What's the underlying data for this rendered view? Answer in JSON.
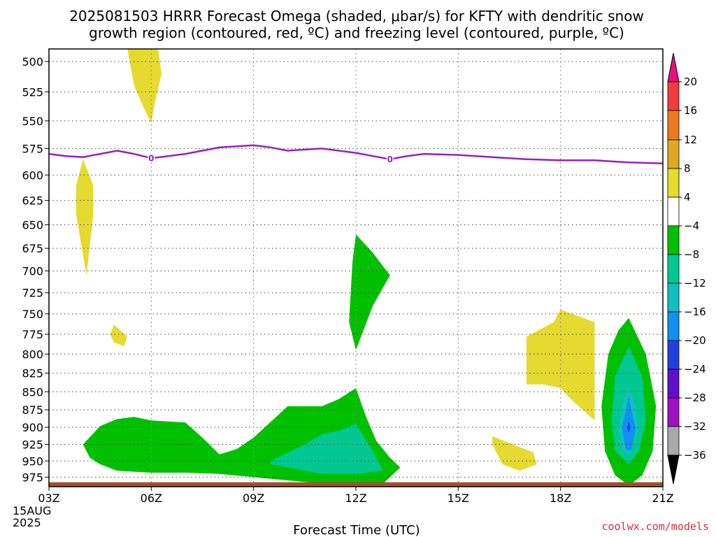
{
  "chart_data": {
    "type": "contour",
    "title_lines": [
      "2025081503 HRRR Forecast Omega (shaded, μbar/s) for KFTY with dendritic snow",
      "growth region (contoured, red, ºC) and freezing level (contoured, purple, ºC)"
    ],
    "xlabel": "Forecast Time (UTC)",
    "credit": "coolwx.com/models",
    "x_ticks": [
      "03Z",
      "06Z",
      "09Z",
      "12Z",
      "15Z",
      "18Z",
      "21Z"
    ],
    "x_tick_hours": [
      3,
      6,
      9,
      12,
      15,
      18,
      21
    ],
    "x_date_lines": [
      "15AUG",
      "2025"
    ],
    "xlim": [
      3,
      21
    ],
    "y_ticks": [
      500,
      525,
      550,
      575,
      600,
      625,
      650,
      675,
      700,
      725,
      750,
      775,
      800,
      825,
      850,
      875,
      900,
      925,
      950,
      975
    ],
    "ylim": [
      490,
      990
    ],
    "y_scale": "log-pressure",
    "grid": true,
    "colorbar": {
      "levels": [
        20,
        16,
        12,
        8,
        4,
        -4,
        -8,
        -12,
        -16,
        -20,
        -24,
        -28,
        -32,
        -36
      ],
      "labels": [
        "20",
        "16",
        "12",
        "8",
        "4",
        "−4",
        "−8",
        "−12",
        "−16",
        "−20",
        "−24",
        "−28",
        "−32",
        "−36"
      ],
      "colors_top_to_bottom": [
        "#e8107e",
        "#f03c3c",
        "#ef7a1e",
        "#e0a822",
        "#e5da30",
        "#ffffff",
        "#00c000",
        "#00c890",
        "#12bfc0",
        "#1090f0",
        "#2040e0",
        "#6010c8",
        "#a010c0",
        "#a8a8a8",
        "#000000"
      ]
    },
    "freezing_level": {
      "label": "0",
      "color": "#9b1fbf",
      "x": [
        3,
        3.5,
        4,
        4.5,
        5,
        5.5,
        6,
        6.5,
        7,
        7.5,
        8,
        8.5,
        9,
        9.5,
        10,
        10.5,
        11,
        11.5,
        12,
        12.5,
        13,
        13.5,
        14,
        15,
        16,
        17,
        18,
        19,
        20,
        21
      ],
      "p": [
        580,
        582,
        583,
        580,
        577,
        580,
        584,
        582,
        580,
        577,
        574,
        573,
        572,
        574,
        577,
        576,
        575,
        577,
        579,
        582,
        585,
        582,
        580,
        581,
        583,
        585,
        586,
        586,
        588,
        589
      ],
      "label_hours": [
        6,
        13
      ]
    },
    "omega_regions": [
      {
        "value": 4,
        "color": "#e5da30",
        "x": [
          5.3,
          5.8,
          6.2,
          6.3,
          6.1,
          6.0,
          5.8,
          5.5,
          5.3
        ],
        "p": [
          490,
          490,
          490,
          510,
          535,
          552,
          540,
          520,
          490
        ]
      },
      {
        "value": 4,
        "color": "#e5da30",
        "x": [
          4.0,
          4.3,
          4.3,
          4.1,
          3.8,
          3.8
        ],
        "p": [
          585,
          610,
          640,
          705,
          640,
          610
        ]
      },
      {
        "value": 4,
        "color": "#e5da30",
        "x": [
          4.9,
          5.3,
          5.2,
          4.9,
          4.8
        ],
        "p": [
          763,
          778,
          790,
          785,
          775
        ]
      },
      {
        "value": 4,
        "color": "#e5da30",
        "x": [
          16.0,
          17.2,
          17.3,
          16.8,
          16.3,
          16.0
        ],
        "p": [
          913,
          937,
          955,
          965,
          955,
          925
        ]
      },
      {
        "value": 4,
        "color": "#e5da30",
        "x": [
          17.0,
          17.8,
          18.0,
          19.0,
          19.0,
          19.0,
          18.3,
          18.0,
          17.5,
          17.0
        ],
        "p": [
          778,
          760,
          745,
          760,
          810,
          890,
          860,
          845,
          840,
          840
        ]
      },
      {
        "value": -4,
        "color": "#00c000",
        "x": [
          12.0,
          12.5,
          13.0,
          12.5,
          12.0,
          11.8,
          11.9
        ],
        "p": [
          660,
          680,
          705,
          740,
          795,
          760,
          690
        ]
      },
      {
        "value": -4,
        "color": "#00c000",
        "x": [
          4.0,
          4.5,
          5.0,
          5.5,
          6.0,
          7.0,
          7.5,
          8.0,
          8.5,
          9.0,
          10.0,
          11.0,
          11.5,
          12.0,
          12.3,
          12.6,
          13.0,
          13.3,
          12.8,
          12.0,
          11.0,
          10.0,
          9.0,
          8.0,
          7.0,
          6.0,
          5.0,
          4.5,
          4.2
        ],
        "p": [
          925,
          898,
          888,
          885,
          890,
          893,
          915,
          940,
          932,
          915,
          870,
          870,
          860,
          845,
          885,
          920,
          945,
          960,
          985,
          987,
          985,
          980,
          975,
          970,
          968,
          968,
          965,
          955,
          945
        ]
      },
      {
        "value": -4,
        "color": "#00c000",
        "x": [
          20.0,
          20.5,
          20.8,
          20.7,
          20.4,
          20.0,
          19.6,
          19.3,
          19.2,
          19.4,
          19.7
        ],
        "p": [
          755,
          800,
          870,
          935,
          972,
          988,
          972,
          935,
          870,
          800,
          770
        ]
      },
      {
        "value": -8,
        "color": "#00c890",
        "x": [
          9.5,
          10.5,
          11.0,
          11.5,
          12.0,
          12.5,
          12.8,
          12.0,
          11.0,
          10.0,
          9.5
        ],
        "p": [
          950,
          925,
          910,
          905,
          895,
          935,
          965,
          970,
          970,
          960,
          955
        ]
      },
      {
        "value": -8,
        "color": "#00c890",
        "x": [
          20.0,
          20.4,
          20.5,
          20.3,
          20.0,
          19.6,
          19.5,
          19.6
        ],
        "p": [
          790,
          830,
          890,
          935,
          955,
          935,
          890,
          830
        ]
      },
      {
        "value": -12,
        "color": "#12bfc0",
        "x": [
          20.0,
          20.2,
          20.3,
          20.1,
          20.0,
          19.8,
          19.7,
          19.8
        ],
        "p": [
          845,
          870,
          905,
          930,
          945,
          930,
          905,
          870
        ]
      },
      {
        "value": -16,
        "color": "#1090f0",
        "x": [
          20.0,
          20.1,
          20.2,
          20.1,
          20.0,
          19.9,
          19.8,
          19.9
        ],
        "p": [
          855,
          880,
          900,
          930,
          935,
          930,
          900,
          880
        ]
      },
      {
        "value": -20,
        "color": "#2040e0",
        "x": [
          20.0,
          20.05,
          20.0,
          19.95
        ],
        "p": [
          892,
          900,
          908,
          900
        ]
      }
    ],
    "ground": {
      "color": "#a0522d",
      "p_top": 983
    }
  }
}
